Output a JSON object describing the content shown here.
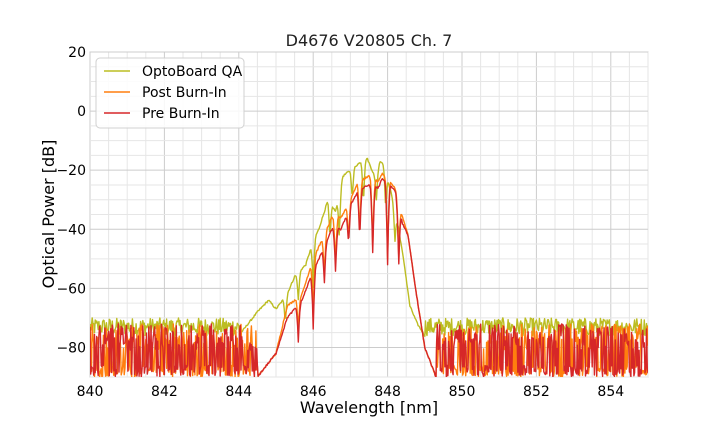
{
  "chart_data": {
    "type": "line",
    "title": "D4676 V20805 Ch. 7",
    "xlabel": "Wavelength [nm]",
    "ylabel": "Optical Power [dB]",
    "xlim": [
      840,
      855
    ],
    "ylim": [
      -90,
      20
    ],
    "xticks": [
      840,
      842,
      844,
      846,
      848,
      850,
      852,
      854
    ],
    "xtick_labels": [
      "840",
      "842",
      "844",
      "846",
      "848",
      "850",
      "852",
      "854"
    ],
    "yticks": [
      20,
      0,
      -20,
      -40,
      -60,
      -80
    ],
    "ytick_labels": [
      "20",
      "0",
      "−20",
      "−40",
      "−60",
      "−80"
    ],
    "grid": true,
    "legend_position": "top-left",
    "series": [
      {
        "name": "OptoBoard QA",
        "color": "#bcbd22",
        "noise_floor": [
          -76,
          -70
        ],
        "envelope": [
          [
            844.0,
            -76
          ],
          [
            844.5,
            -68
          ],
          [
            844.8,
            -64
          ],
          [
            845.0,
            -67
          ],
          [
            845.3,
            -62
          ],
          [
            845.5,
            -56
          ],
          [
            845.8,
            -52
          ],
          [
            846.0,
            -44
          ],
          [
            846.15,
            -40
          ],
          [
            846.4,
            -30
          ],
          [
            846.6,
            -34
          ],
          [
            846.8,
            -22
          ],
          [
            847.0,
            -20
          ],
          [
            847.3,
            -17
          ],
          [
            847.45,
            -16
          ],
          [
            847.65,
            -22
          ],
          [
            847.8,
            -17
          ],
          [
            847.9,
            -18
          ],
          [
            848.1,
            -28
          ],
          [
            848.3,
            -40
          ],
          [
            848.45,
            -52
          ],
          [
            848.6,
            -66
          ],
          [
            848.8,
            -72
          ],
          [
            849.0,
            -76
          ]
        ],
        "notches": [
          [
            845.25,
            -72
          ],
          [
            845.6,
            -64
          ],
          [
            846.0,
            -60
          ],
          [
            846.45,
            -44
          ],
          [
            846.7,
            -42
          ],
          [
            847.05,
            -30
          ],
          [
            847.35,
            -32
          ],
          [
            847.7,
            -30
          ],
          [
            847.95,
            -34
          ],
          [
            848.2,
            -44
          ]
        ]
      },
      {
        "name": "Post Burn-In",
        "color": "#ff7f0e",
        "noise_floor": [
          -90,
          -72
        ],
        "envelope": [
          [
            844.5,
            -90
          ],
          [
            845.0,
            -82
          ],
          [
            845.3,
            -66
          ],
          [
            845.7,
            -62
          ],
          [
            846.0,
            -50
          ],
          [
            846.3,
            -42
          ],
          [
            846.5,
            -36
          ],
          [
            846.75,
            -36
          ],
          [
            847.0,
            -30
          ],
          [
            847.2,
            -24
          ],
          [
            847.5,
            -22
          ],
          [
            847.75,
            -24
          ],
          [
            847.85,
            -21
          ],
          [
            848.05,
            -24
          ],
          [
            848.2,
            -26
          ],
          [
            848.4,
            -36
          ],
          [
            848.55,
            -42
          ],
          [
            848.75,
            -60
          ],
          [
            849.0,
            -80
          ],
          [
            849.3,
            -90
          ]
        ],
        "notches": [
          [
            845.6,
            -74
          ],
          [
            846.0,
            -70
          ],
          [
            846.3,
            -56
          ],
          [
            846.6,
            -52
          ],
          [
            846.95,
            -44
          ],
          [
            847.25,
            -42
          ],
          [
            847.6,
            -46
          ],
          [
            848.0,
            -50
          ],
          [
            848.3,
            -50
          ]
        ]
      },
      {
        "name": "Pre Burn-In",
        "color": "#d62728",
        "noise_floor": [
          -90,
          -72
        ],
        "envelope": [
          [
            844.5,
            -90
          ],
          [
            845.0,
            -82
          ],
          [
            845.3,
            -70
          ],
          [
            845.7,
            -64
          ],
          [
            846.0,
            -54
          ],
          [
            846.3,
            -46
          ],
          [
            846.5,
            -40
          ],
          [
            846.75,
            -40
          ],
          [
            847.0,
            -32
          ],
          [
            847.2,
            -27
          ],
          [
            847.5,
            -25
          ],
          [
            847.75,
            -26
          ],
          [
            847.85,
            -23
          ],
          [
            848.05,
            -25
          ],
          [
            848.2,
            -27
          ],
          [
            848.4,
            -38
          ],
          [
            848.55,
            -42
          ],
          [
            848.75,
            -60
          ],
          [
            849.0,
            -80
          ],
          [
            849.3,
            -90
          ]
        ],
        "notches": [
          [
            845.6,
            -78
          ],
          [
            846.0,
            -74
          ],
          [
            846.3,
            -58
          ],
          [
            846.6,
            -54
          ],
          [
            846.95,
            -46
          ],
          [
            847.25,
            -44
          ],
          [
            847.6,
            -48
          ],
          [
            848.0,
            -52
          ],
          [
            848.3,
            -52
          ]
        ]
      }
    ]
  }
}
